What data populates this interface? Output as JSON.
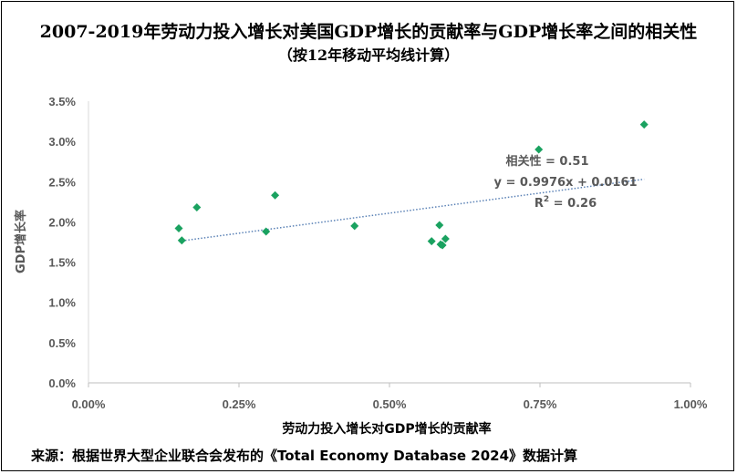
{
  "chart_data": {
    "type": "scatter",
    "title": "2007-2019年劳动力投入增长对美国GDP增长的贡献率与GDP增长率之间的相关性",
    "subtitle": "（按12年移动平均线计算）",
    "xlabel": "劳动力投入增长对GDP增长的贡献率",
    "ylabel": "GDP增长率",
    "xlim": [
      0,
      0.01
    ],
    "ylim": [
      0,
      0.035
    ],
    "xticks": [
      0,
      0.0025,
      0.005,
      0.0075,
      0.01
    ],
    "xtick_labels": [
      "0.00%",
      "0.25%",
      "0.50%",
      "0.75%",
      "1.00%"
    ],
    "yticks": [
      0,
      0.005,
      0.01,
      0.015,
      0.02,
      0.025,
      0.03,
      0.035
    ],
    "ytick_labels": [
      "0.0%",
      "0.5%",
      "1.0%",
      "1.5%",
      "2.0%",
      "2.5%",
      "3.0%",
      "3.5%"
    ],
    "grid": false,
    "marker_color": "#1aa260",
    "trendline_color": "#5b82b6",
    "points": [
      {
        "x": 0.0015,
        "y": 0.0192
      },
      {
        "x": 0.00155,
        "y": 0.0177
      },
      {
        "x": 0.0018,
        "y": 0.0218
      },
      {
        "x": 0.00295,
        "y": 0.0188
      },
      {
        "x": 0.0031,
        "y": 0.0233
      },
      {
        "x": 0.00442,
        "y": 0.0195
      },
      {
        "x": 0.0057,
        "y": 0.0176
      },
      {
        "x": 0.00583,
        "y": 0.0196
      },
      {
        "x": 0.00585,
        "y": 0.0172
      },
      {
        "x": 0.00588,
        "y": 0.0171
      },
      {
        "x": 0.00593,
        "y": 0.0179
      },
      {
        "x": 0.00748,
        "y": 0.029
      },
      {
        "x": 0.00923,
        "y": 0.0321
      }
    ],
    "trendline": {
      "x_range": [
        0.0015,
        0.00923
      ],
      "slope": 0.9976,
      "intercept": 0.0161
    },
    "annotations": {
      "correlation": "相关性 = 0.51",
      "equation": "y = 0.9976x + 0.0161",
      "r2_prefix": "R",
      "r2_exp": "2",
      "r2_value": " = 0.26"
    },
    "source": "来源：根据世界大型企业联合会发布的《Total Economy Database 2024》数据计算"
  }
}
